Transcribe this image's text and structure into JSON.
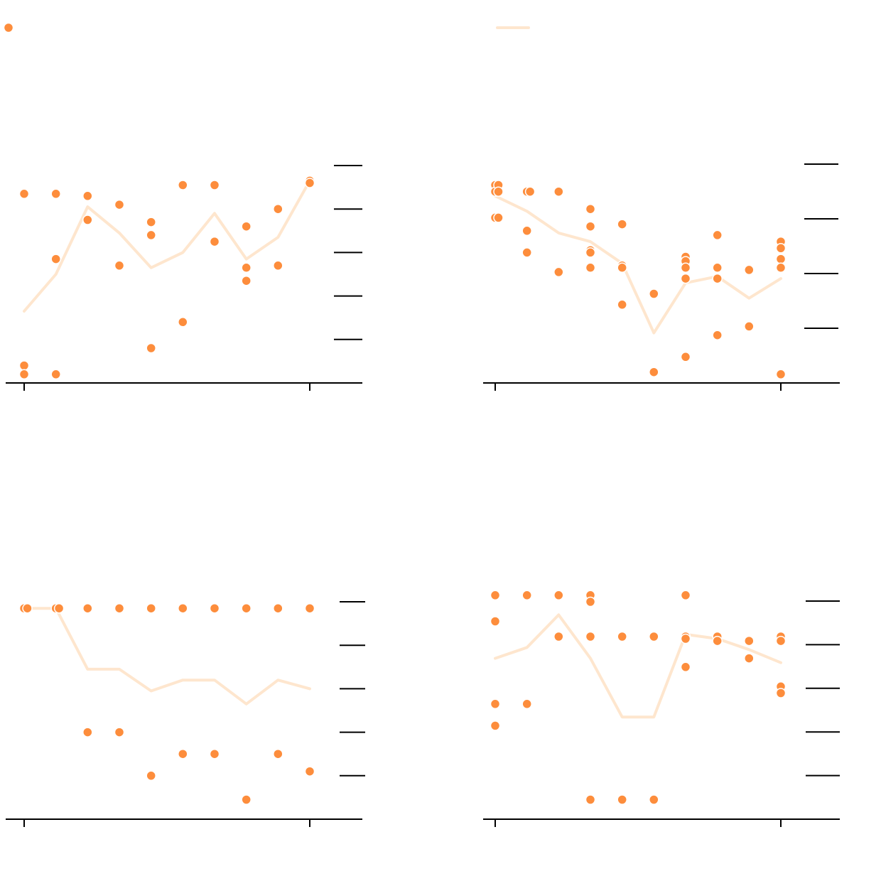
{
  "colors": {
    "points": "#fd8d3c",
    "line": "#fee6ce",
    "axis": "#000000",
    "background": "#ffffff"
  },
  "legend": [
    {
      "kind": "point",
      "label": ""
    },
    {
      "kind": "line",
      "label": ""
    }
  ],
  "chart_data": [
    {
      "type": "scatter",
      "panel": "top-left",
      "title": "",
      "xlabel": "",
      "ylabel": "",
      "xlim": [
        0,
        9
      ],
      "ylim": [
        0,
        1
      ],
      "ytick_count": 5,
      "x_ticks": [
        0,
        9
      ],
      "points": [
        [
          0,
          0.87
        ],
        [
          0,
          0.08
        ],
        [
          0,
          0.04
        ],
        [
          1,
          0.87
        ],
        [
          1,
          0.57
        ],
        [
          1,
          0.04
        ],
        [
          2,
          0.86
        ],
        [
          2,
          0.75
        ],
        [
          3,
          0.82
        ],
        [
          3,
          0.54
        ],
        [
          4,
          0.74
        ],
        [
          4,
          0.68
        ],
        [
          4,
          0.16
        ],
        [
          5,
          0.91
        ],
        [
          5,
          0.28
        ],
        [
          6,
          0.91
        ],
        [
          6,
          0.65
        ],
        [
          7,
          0.72
        ],
        [
          7,
          0.53
        ],
        [
          7,
          0.47
        ],
        [
          8,
          0.8
        ],
        [
          8,
          0.54
        ],
        [
          9,
          0.93
        ],
        [
          9,
          0.92
        ]
      ],
      "line": [
        [
          0,
          0.33
        ],
        [
          1,
          0.5
        ],
        [
          2,
          0.81
        ],
        [
          3,
          0.69
        ],
        [
          4,
          0.53
        ],
        [
          5,
          0.6
        ],
        [
          6,
          0.78
        ],
        [
          7,
          0.57
        ],
        [
          8,
          0.67
        ],
        [
          9,
          0.93
        ]
      ]
    },
    {
      "type": "scatter",
      "panel": "top-right",
      "title": "",
      "xlabel": "",
      "ylabel": "",
      "xlim": [
        0,
        9
      ],
      "ylim": [
        0,
        1
      ],
      "ytick_count": 4,
      "x_ticks": [
        0,
        9
      ],
      "points": [
        [
          0,
          0.91
        ],
        [
          0,
          0.88
        ],
        [
          0,
          0.76
        ],
        [
          0.1,
          0.91
        ],
        [
          0.1,
          0.88
        ],
        [
          0.1,
          0.76
        ],
        [
          1,
          0.88
        ],
        [
          1,
          0.7
        ],
        [
          1,
          0.6
        ],
        [
          1.1,
          0.88
        ],
        [
          2,
          0.88
        ],
        [
          2,
          0.51
        ],
        [
          3,
          0.8
        ],
        [
          3,
          0.72
        ],
        [
          3,
          0.61
        ],
        [
          3,
          0.6
        ],
        [
          3,
          0.53
        ],
        [
          4,
          0.73
        ],
        [
          4,
          0.54
        ],
        [
          4,
          0.53
        ],
        [
          4,
          0.36
        ],
        [
          5,
          0.41
        ],
        [
          5,
          0.05
        ],
        [
          6,
          0.58
        ],
        [
          6,
          0.56
        ],
        [
          6,
          0.53
        ],
        [
          6,
          0.48
        ],
        [
          6,
          0.12
        ],
        [
          7,
          0.68
        ],
        [
          7,
          0.53
        ],
        [
          7,
          0.48
        ],
        [
          7,
          0.22
        ],
        [
          8,
          0.52
        ],
        [
          8,
          0.26
        ],
        [
          9,
          0.65
        ],
        [
          9,
          0.62
        ],
        [
          9,
          0.57
        ],
        [
          9,
          0.53
        ],
        [
          9,
          0.04
        ]
      ],
      "line": [
        [
          0,
          0.86
        ],
        [
          1,
          0.79
        ],
        [
          2,
          0.69
        ],
        [
          3,
          0.65
        ],
        [
          4,
          0.55
        ],
        [
          5,
          0.23
        ],
        [
          6,
          0.46
        ],
        [
          7,
          0.49
        ],
        [
          8,
          0.39
        ],
        [
          9,
          0.48
        ]
      ]
    },
    {
      "type": "scatter",
      "panel": "bottom-left",
      "title": "",
      "xlabel": "",
      "ylabel": "",
      "xlim": [
        0,
        9
      ],
      "ylim": [
        0,
        1
      ],
      "ytick_count": 5,
      "x_ticks": [
        0,
        9
      ],
      "points": [
        [
          0,
          0.97
        ],
        [
          0.1,
          0.97
        ],
        [
          1,
          0.97
        ],
        [
          1.1,
          0.97
        ],
        [
          2,
          0.97
        ],
        [
          2,
          0.4
        ],
        [
          3,
          0.97
        ],
        [
          3,
          0.4
        ],
        [
          4,
          0.97
        ],
        [
          4,
          0.2
        ],
        [
          5,
          0.97
        ],
        [
          5,
          0.3
        ],
        [
          6,
          0.97
        ],
        [
          6,
          0.3
        ],
        [
          7,
          0.97
        ],
        [
          7,
          0.09
        ],
        [
          8,
          0.97
        ],
        [
          8,
          0.3
        ],
        [
          9,
          0.97
        ],
        [
          9,
          0.22
        ]
      ],
      "line": [
        [
          0,
          0.97
        ],
        [
          1,
          0.97
        ],
        [
          2,
          0.69
        ],
        [
          3,
          0.69
        ],
        [
          4,
          0.59
        ],
        [
          5,
          0.64
        ],
        [
          6,
          0.64
        ],
        [
          7,
          0.53
        ],
        [
          8,
          0.64
        ],
        [
          9,
          0.6
        ]
      ]
    },
    {
      "type": "scatter",
      "panel": "bottom-right",
      "title": "",
      "xlabel": "",
      "ylabel": "",
      "xlim": [
        0,
        9
      ],
      "ylim": [
        0,
        1
      ],
      "ytick_count": 5,
      "x_ticks": [
        0,
        9
      ],
      "points": [
        [
          0,
          1.03
        ],
        [
          0,
          0.91
        ],
        [
          0,
          0.53
        ],
        [
          0,
          0.43
        ],
        [
          1,
          1.03
        ],
        [
          1,
          0.53
        ],
        [
          2,
          1.03
        ],
        [
          2,
          0.84
        ],
        [
          3,
          1.03
        ],
        [
          3,
          1.0
        ],
        [
          3,
          0.84
        ],
        [
          3,
          0.09
        ],
        [
          4,
          0.84
        ],
        [
          4,
          0.09
        ],
        [
          5,
          0.84
        ],
        [
          5,
          0.09
        ],
        [
          6,
          1.03
        ],
        [
          6,
          0.84
        ],
        [
          6,
          0.83
        ],
        [
          6,
          0.7
        ],
        [
          7,
          0.84
        ],
        [
          7,
          0.82
        ],
        [
          8,
          0.82
        ],
        [
          8,
          0.74
        ],
        [
          9,
          0.84
        ],
        [
          9,
          0.82
        ],
        [
          9,
          0.61
        ],
        [
          9,
          0.58
        ]
      ],
      "line": [
        [
          0,
          0.74
        ],
        [
          1,
          0.79
        ],
        [
          2,
          0.94
        ],
        [
          3,
          0.74
        ],
        [
          4,
          0.47
        ],
        [
          5,
          0.47
        ],
        [
          6,
          0.85
        ],
        [
          7,
          0.83
        ],
        [
          8,
          0.78
        ],
        [
          9,
          0.72
        ]
      ]
    }
  ]
}
